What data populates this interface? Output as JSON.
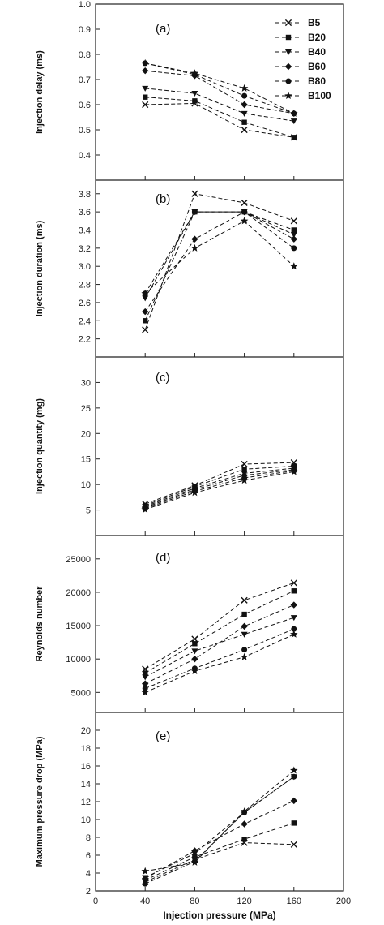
{
  "chart_data": [
    {
      "type": "line",
      "panel_label": "(a)",
      "ylabel": "Injection delay (ms)",
      "xlabel": "",
      "ylim": [
        0.3,
        1.0
      ],
      "yticks": [
        "0.4",
        "0.5",
        "0.6",
        "0.7",
        "0.8",
        "0.9",
        "1.0"
      ],
      "x": [
        40,
        80,
        120,
        160
      ],
      "legend": "top-right",
      "series": [
        {
          "name": "B5",
          "marker": "x",
          "values": [
            0.6,
            0.605,
            0.5,
            0.47
          ]
        },
        {
          "name": "B20",
          "marker": "square",
          "values": [
            0.63,
            0.615,
            0.53,
            0.47
          ]
        },
        {
          "name": "B40",
          "marker": "triangle-down",
          "values": [
            0.665,
            0.645,
            0.565,
            0.535
          ]
        },
        {
          "name": "B60",
          "marker": "diamond",
          "values": [
            0.735,
            0.715,
            0.6,
            0.565
          ]
        },
        {
          "name": "B80",
          "marker": "circle",
          "values": [
            0.765,
            0.72,
            0.635,
            0.565
          ]
        },
        {
          "name": "B100",
          "marker": "star",
          "values": [
            0.765,
            0.725,
            0.665,
            0.565
          ]
        }
      ]
    },
    {
      "type": "line",
      "panel_label": "(b)",
      "ylabel": "Injection duration (ms)",
      "xlabel": "",
      "ylim": [
        2.0,
        3.95
      ],
      "yticks": [
        "2.2",
        "2.4",
        "2.6",
        "2.8",
        "3.0",
        "3.2",
        "3.4",
        "3.6",
        "3.8"
      ],
      "x": [
        40,
        80,
        120,
        160
      ],
      "series": [
        {
          "name": "B5",
          "marker": "x",
          "values": [
            2.3,
            3.8,
            3.7,
            3.5
          ]
        },
        {
          "name": "B20",
          "marker": "square",
          "values": [
            2.4,
            3.6,
            3.6,
            3.4
          ]
        },
        {
          "name": "B40",
          "marker": "triangle-down",
          "values": [
            2.65,
            3.6,
            3.6,
            3.35
          ]
        },
        {
          "name": "B60",
          "marker": "diamond",
          "values": [
            2.5,
            3.3,
            3.6,
            3.3
          ]
        },
        {
          "name": "B80",
          "marker": "circle",
          "values": [
            2.7,
            3.6,
            3.6,
            3.2
          ]
        },
        {
          "name": "B100",
          "marker": "star",
          "values": [
            2.7,
            3.2,
            3.5,
            3.0
          ]
        }
      ]
    },
    {
      "type": "line",
      "panel_label": "(c)",
      "ylabel": "Injection quantity (mg)",
      "xlabel": "",
      "ylim": [
        0,
        35
      ],
      "yticks": [
        "5",
        "10",
        "15",
        "20",
        "25",
        "30"
      ],
      "x": [
        40,
        80,
        120,
        160
      ],
      "series": [
        {
          "name": "B5",
          "marker": "x",
          "values": [
            6.2,
            9.8,
            14.0,
            14.3
          ]
        },
        {
          "name": "B20",
          "marker": "square",
          "values": [
            5.9,
            9.6,
            13.0,
            13.6
          ]
        },
        {
          "name": "B40",
          "marker": "triangle-down",
          "values": [
            5.7,
            9.3,
            12.2,
            13.2
          ]
        },
        {
          "name": "B60",
          "marker": "diamond",
          "values": [
            5.5,
            9.0,
            11.8,
            12.9
          ]
        },
        {
          "name": "B80",
          "marker": "circle",
          "values": [
            5.3,
            8.7,
            11.3,
            12.7
          ]
        },
        {
          "name": "B100",
          "marker": "star",
          "values": [
            5.1,
            8.4,
            10.8,
            12.5
          ]
        }
      ]
    },
    {
      "type": "line",
      "panel_label": "(d)",
      "ylabel": "Reynolds number",
      "xlabel": "",
      "ylim": [
        2000,
        28500
      ],
      "yticks": [
        "5000",
        "10000",
        "15000",
        "20000",
        "25000"
      ],
      "x": [
        40,
        80,
        120,
        160
      ],
      "series": [
        {
          "name": "B5",
          "marker": "x",
          "values": [
            8500,
            13000,
            18800,
            21400
          ]
        },
        {
          "name": "B20",
          "marker": "square",
          "values": [
            7900,
            12300,
            16700,
            20200
          ]
        },
        {
          "name": "B40",
          "marker": "triangle-down",
          "values": [
            7300,
            11200,
            13700,
            16200
          ]
        },
        {
          "name": "B60",
          "marker": "diamond",
          "values": [
            6300,
            10000,
            14900,
            18100
          ]
        },
        {
          "name": "B80",
          "marker": "circle",
          "values": [
            5600,
            8600,
            11400,
            14500
          ]
        },
        {
          "name": "B100",
          "marker": "star",
          "values": [
            5000,
            8200,
            10300,
            13700
          ]
        }
      ]
    },
    {
      "type": "line",
      "panel_label": "(e)",
      "ylabel": "Maximum pressure drop (MPa)",
      "xlabel": "Injection pressure (MPa)",
      "ylim": [
        2,
        22
      ],
      "yticks": [
        "2",
        "4",
        "6",
        "8",
        "10",
        "12",
        "14",
        "16",
        "18",
        "20"
      ],
      "xlim": [
        0,
        200
      ],
      "xticks": [
        "0",
        "40",
        "80",
        "120",
        "160",
        "200"
      ],
      "x": [
        40,
        80,
        120,
        160
      ],
      "series": [
        {
          "name": "B5",
          "marker": "x",
          "values": [
            3.0,
            5.5,
            7.4,
            7.2
          ]
        },
        {
          "name": "B20",
          "marker": "square",
          "values": [
            3.2,
            5.8,
            7.8,
            9.6
          ]
        },
        {
          "name": "B40",
          "marker": "triangle-down",
          "values": [
            3.5,
            6.2,
            10.8,
            14.8
          ]
        },
        {
          "name": "B60",
          "marker": "diamond",
          "values": [
            3.4,
            6.5,
            9.5,
            12.1
          ]
        },
        {
          "name": "B80",
          "marker": "circle",
          "values": [
            2.8,
            5.3,
            10.8,
            14.8
          ]
        },
        {
          "name": "B100",
          "marker": "star",
          "values": [
            4.2,
            5.2,
            10.9,
            15.5
          ]
        }
      ]
    }
  ]
}
